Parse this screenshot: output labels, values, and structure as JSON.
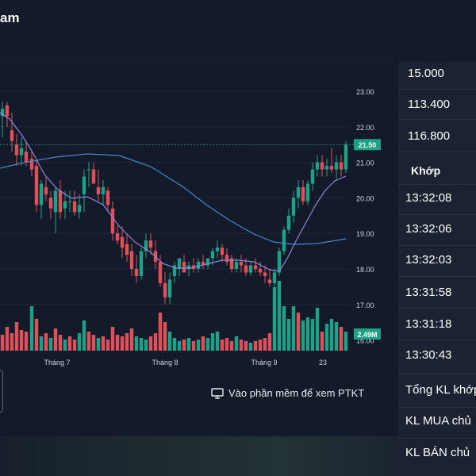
{
  "app": {
    "title": "am"
  },
  "chart": {
    "ptkt_label": "Vào phần mềm để xem PTKT",
    "price_label": "21.50",
    "volume_label": "2.49M",
    "colors": {
      "up": "#1fa187",
      "down": "#e0505b",
      "ma_fast": "#8b86d8",
      "ma_slow": "#4c84c8"
    }
  },
  "chart_data": {
    "type": "candlestick",
    "y_ticks": [
      "23.00",
      "22.00",
      "21.00",
      "20.00",
      "19.00",
      "18.00",
      "17.00",
      "16.00"
    ],
    "x_ticks": [
      "Tháng 7",
      "Tháng 8",
      "Tháng 9",
      "23"
    ],
    "last_price": 21.5,
    "last_volume": "2.49M",
    "ylim": [
      16.0,
      23.0
    ]
  },
  "order_panel": {
    "prices": [
      "15.000",
      "113.400",
      "116.800"
    ],
    "khop_label": "Khớp",
    "times": [
      "13:32:08",
      "13:32:06",
      "13:32:03",
      "13:31:58",
      "13:31:18",
      "13:30:43"
    ],
    "stats": [
      "Tổng KL khớp",
      "KL MUA chủ",
      "KL BÁN chủ"
    ]
  }
}
